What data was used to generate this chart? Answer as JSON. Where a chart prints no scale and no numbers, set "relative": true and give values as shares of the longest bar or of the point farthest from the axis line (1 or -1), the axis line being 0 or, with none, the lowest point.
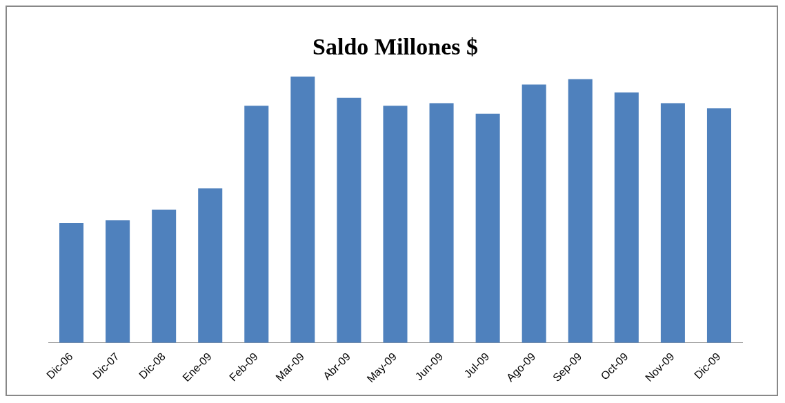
{
  "chart_data": {
    "type": "bar",
    "title": "Saldo Millones $",
    "relative": true,
    "categories": [
      "Dic-06",
      "Dic-07",
      "Dic-08",
      "Ene-09",
      "Feb-09",
      "Mar-09",
      "Abr-09",
      "May-09",
      "Jun-09",
      "Jul-09",
      "Ago-09",
      "Sep-09",
      "Oct-09",
      "Nov-09",
      "Dic-09"
    ],
    "values": [
      0.45,
      0.46,
      0.5,
      0.58,
      0.89,
      1,
      0.92,
      0.89,
      0.9,
      0.86,
      0.97,
      0.99,
      0.94,
      0.9,
      0.88
    ],
    "color": "#4f81bd",
    "grid": false,
    "legend": false
  }
}
